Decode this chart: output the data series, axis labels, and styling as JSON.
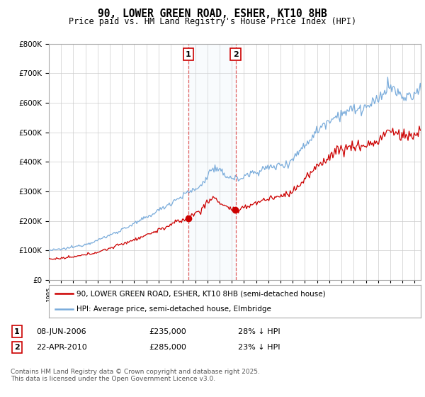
{
  "title": "90, LOWER GREEN ROAD, ESHER, KT10 8HB",
  "subtitle": "Price paid vs. HM Land Registry's House Price Index (HPI)",
  "ylim": [
    0,
    800000
  ],
  "xlim_start": 1995.0,
  "xlim_end": 2025.5,
  "hpi_color": "#7aacdb",
  "price_color": "#cc0000",
  "transaction1_date": 2006.44,
  "transaction1_price": 235000,
  "transaction1_label": "1",
  "transaction1_text": "08-JUN-2006",
  "transaction1_pct": "28% ↓ HPI",
  "transaction2_date": 2010.31,
  "transaction2_price": 285000,
  "transaction2_label": "2",
  "transaction2_text": "22-APR-2010",
  "transaction2_pct": "23% ↓ HPI",
  "legend_line1": "90, LOWER GREEN ROAD, ESHER, KT10 8HB (semi-detached house)",
  "legend_line2": "HPI: Average price, semi-detached house, Elmbridge",
  "footer": "Contains HM Land Registry data © Crown copyright and database right 2025.\nThis data is licensed under the Open Government Licence v3.0.",
  "background_color": "#ffffff",
  "grid_color": "#cccccc",
  "highlight_color": "#dce9f5"
}
